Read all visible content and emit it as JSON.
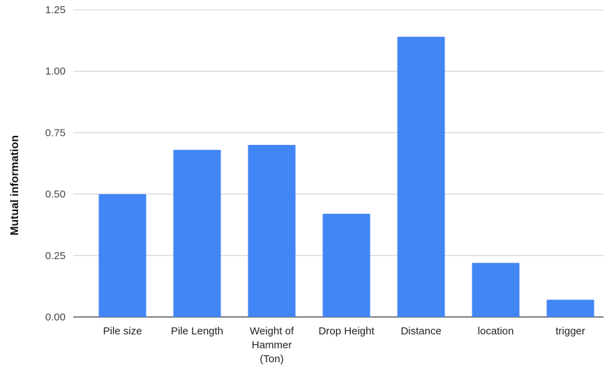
{
  "chart_data": {
    "type": "bar",
    "title": "",
    "xlabel": "",
    "ylabel": "Mutual information",
    "categories": [
      "Pile size",
      "Pile Length",
      "Weight of Hammer (Ton)",
      "Drop Height",
      "Distance",
      "location",
      "trigger"
    ],
    "category_label_lines": [
      [
        "Pile size"
      ],
      [
        "Pile Length"
      ],
      [
        "Weight of",
        "Hammer",
        "(Ton)"
      ],
      [
        "Drop Height"
      ],
      [
        "Distance"
      ],
      [
        "location"
      ],
      [
        "trigger"
      ]
    ],
    "values": [
      0.5,
      0.68,
      0.7,
      0.42,
      1.14,
      0.22,
      0.07
    ],
    "ylim": [
      0,
      1.25
    ],
    "yticks": [
      0,
      0.25,
      0.5,
      0.75,
      1.0,
      1.25
    ],
    "ytick_labels": [
      "0.00",
      "0.25",
      "0.50",
      "0.75",
      "1.00",
      "1.25"
    ],
    "grid": true,
    "legend": "none",
    "bar_color": "#4285F4",
    "grid_color": "#CCCCCC",
    "baseline_color": "#333333"
  }
}
